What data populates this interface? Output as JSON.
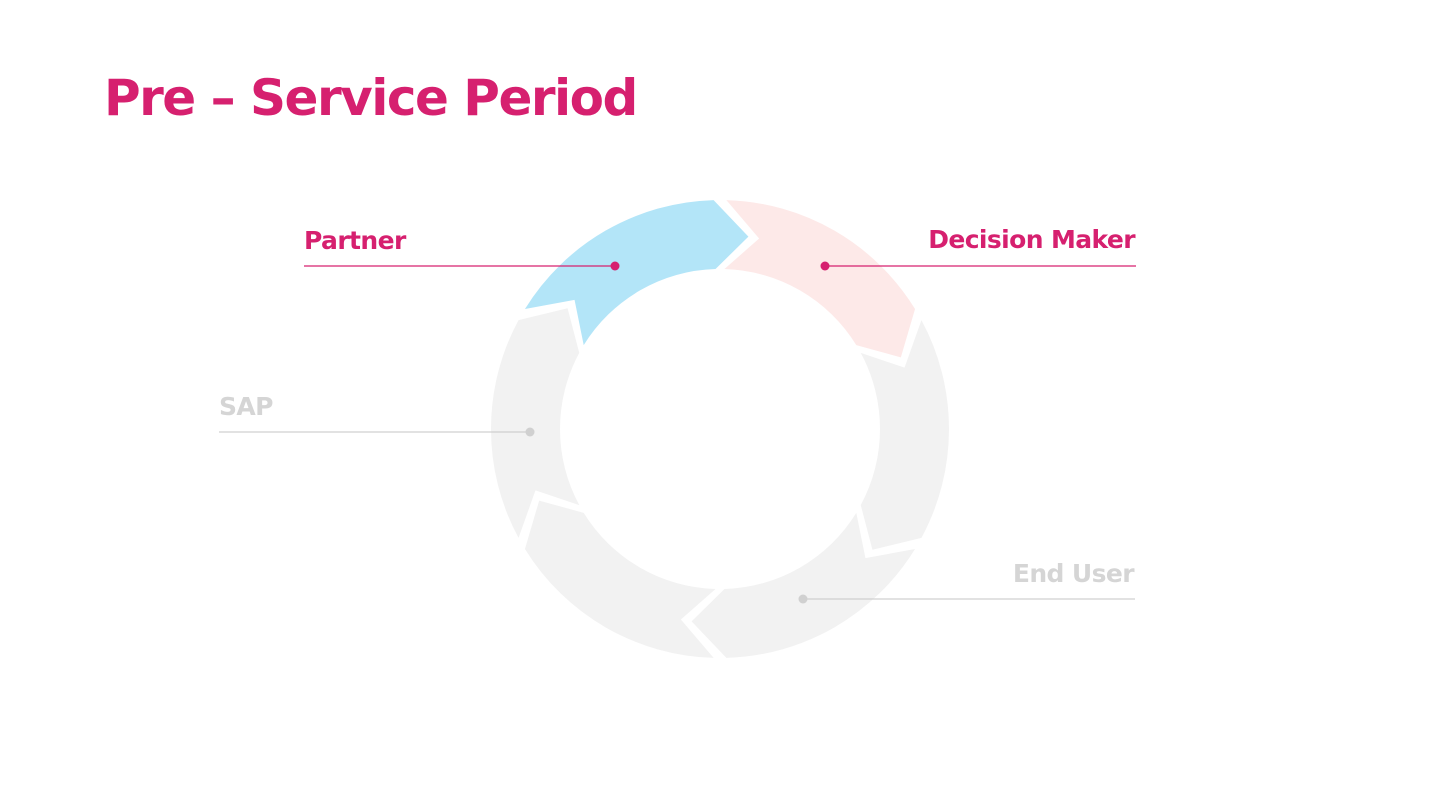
{
  "title": "Pre – Service Period",
  "colors": {
    "accent": "#D6206F",
    "muted_text": "#D5D5D5",
    "muted_line": "#D0D0D0",
    "segment_grey": "#F2F2F2",
    "segment_blue": "#B3E5F8",
    "segment_pink": "#FDE9E8"
  },
  "cycle": {
    "segments": [
      {
        "name": "segment-partner",
        "color": "#B3E5F8"
      },
      {
        "name": "segment-decision-maker",
        "color": "#FDE9E8"
      },
      {
        "name": "segment-right",
        "color": "#F2F2F2"
      },
      {
        "name": "segment-end-user",
        "color": "#F2F2F2"
      },
      {
        "name": "segment-bottom-left",
        "color": "#F2F2F2"
      },
      {
        "name": "segment-sap",
        "color": "#F2F2F2"
      }
    ]
  },
  "labels": {
    "partner": {
      "text": "Partner",
      "state": "active"
    },
    "decision_maker": {
      "text": "Decision Maker",
      "state": "active"
    },
    "sap": {
      "text": "SAP",
      "state": "inactive"
    },
    "end_user": {
      "text": "End User",
      "state": "inactive"
    }
  }
}
